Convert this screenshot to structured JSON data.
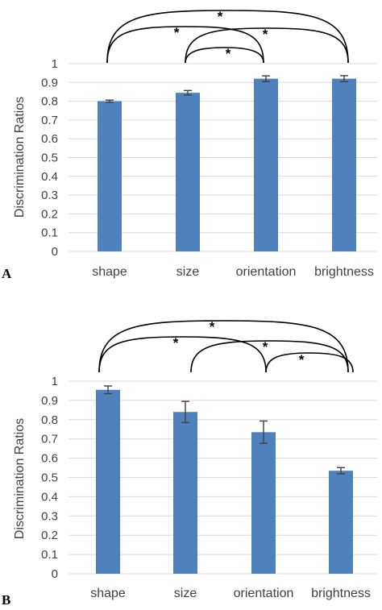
{
  "chart_data": [
    {
      "type": "bar",
      "panel_label": "A",
      "ylabel": "Discrimination Ratios",
      "xlabel": "",
      "ylim": [
        0,
        1
      ],
      "yticks": [
        "0",
        "0.1",
        "0.2",
        "0.3",
        "0.4",
        "0.5",
        "0.6",
        "0.7",
        "0.8",
        "0.9",
        "1"
      ],
      "categories": [
        "shape",
        "size",
        "orientation",
        "brightness"
      ],
      "values": [
        0.8,
        0.845,
        0.92,
        0.92
      ],
      "errors": [
        0.006,
        0.012,
        0.015,
        0.016
      ],
      "bar_color": "#4f81bd",
      "grid": true,
      "significance": [
        {
          "from": "shape",
          "to": "brightness",
          "label": "*"
        },
        {
          "from": "shape",
          "to": "orientation",
          "label": "*"
        },
        {
          "from": "size",
          "to": "brightness",
          "label": "*"
        },
        {
          "from": "size",
          "to": "orientation",
          "label": "*"
        }
      ]
    },
    {
      "type": "bar",
      "panel_label": "B",
      "ylabel": "Discrimination Ratios",
      "xlabel": "",
      "ylim": [
        0,
        1
      ],
      "yticks": [
        "0",
        "0.1",
        "0.2",
        "0.3",
        "0.4",
        "0.5",
        "0.6",
        "0.7",
        "0.8",
        "0.9",
        "1"
      ],
      "categories": [
        "shape",
        "size",
        "orientation",
        "brightness"
      ],
      "values": [
        0.955,
        0.84,
        0.735,
        0.535
      ],
      "errors": [
        0.02,
        0.055,
        0.058,
        0.016
      ],
      "bar_color": "#4f81bd",
      "grid": true,
      "significance": [
        {
          "from": "shape",
          "to": "brightness",
          "label": "*"
        },
        {
          "from": "shape",
          "to": "orientation",
          "label": "*"
        },
        {
          "from": "size",
          "to": "brightness",
          "label": "*"
        },
        {
          "from": "orientation",
          "to": "brightness",
          "label": "*"
        }
      ]
    }
  ]
}
